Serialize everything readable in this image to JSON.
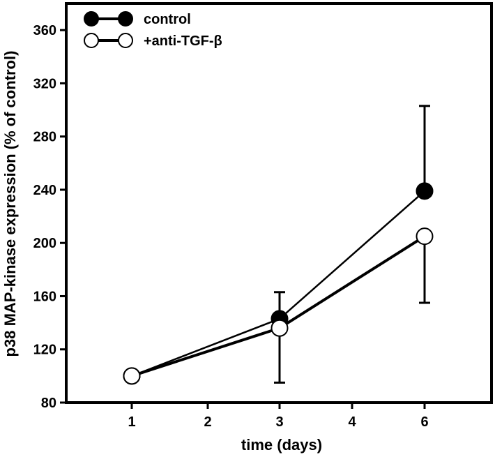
{
  "chart_data": {
    "type": "line",
    "title": "",
    "xlabel": "time (days)",
    "ylabel": "p38 MAP-kinase expression (% of control)",
    "x_categories": [
      "1",
      "2",
      "3",
      "4",
      "6"
    ],
    "xlim": [
      0,
      6
    ],
    "ylim": [
      80,
      380
    ],
    "yticks": [
      80,
      120,
      160,
      200,
      240,
      280,
      320,
      360
    ],
    "grid": false,
    "legend_position": "top-left",
    "series": [
      {
        "name": "control",
        "marker": "filled-circle",
        "color": "#000000",
        "x": [
          1,
          3,
          6
        ],
        "y": [
          100,
          143,
          239
        ],
        "error_plus": [
          0,
          20,
          64
        ],
        "error_minus": [
          0,
          0,
          0
        ]
      },
      {
        "name": "+anti-TGF-β",
        "marker": "open-circle",
        "color": "#000000",
        "x": [
          1,
          3,
          6
        ],
        "y": [
          100,
          136,
          205
        ],
        "error_plus": [
          0,
          0,
          0
        ],
        "error_minus": [
          0,
          41,
          50
        ]
      }
    ]
  }
}
